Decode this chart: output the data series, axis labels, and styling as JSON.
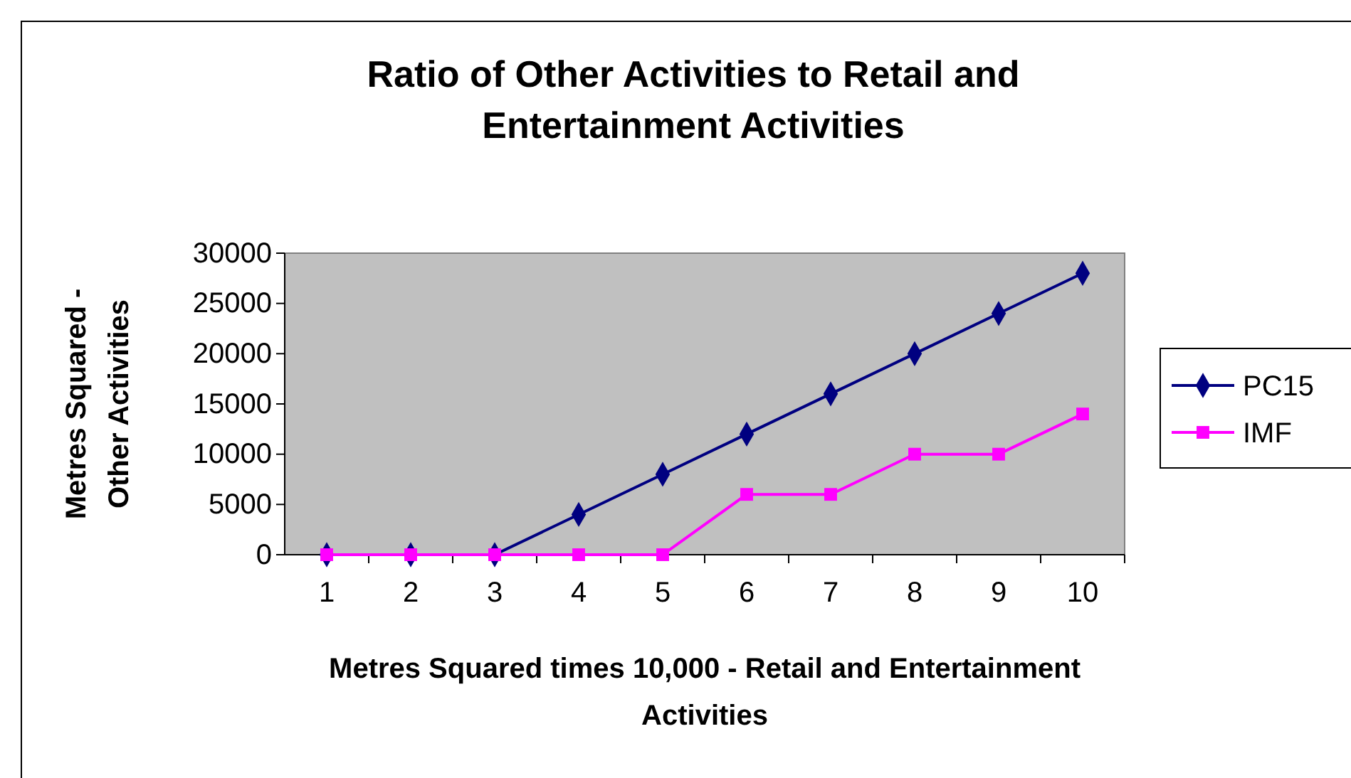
{
  "chart_data": {
    "type": "line",
    "title": "Ratio of Other Activities to Retail and Entertainment Activities",
    "xlabel": "Metres Squared times 10,000 - Retail and Entertainment Activities",
    "ylabel": "Metres Squared - Other Activities",
    "categories": [
      "1",
      "2",
      "3",
      "4",
      "5",
      "6",
      "7",
      "8",
      "9",
      "10"
    ],
    "series": [
      {
        "name": "PC15",
        "color": "#000080",
        "marker": "diamond",
        "values": [
          0,
          0,
          0,
          4000,
          8000,
          12000,
          16000,
          20000,
          24000,
          28000
        ]
      },
      {
        "name": "IMF",
        "color": "#ff00ff",
        "marker": "square",
        "values": [
          0,
          0,
          0,
          0,
          0,
          6000,
          6000,
          10000,
          10000,
          14000
        ]
      }
    ],
    "ylim": [
      0,
      30000
    ],
    "yticks": [
      0,
      5000,
      10000,
      15000,
      20000,
      25000,
      30000
    ],
    "legend": "right"
  }
}
